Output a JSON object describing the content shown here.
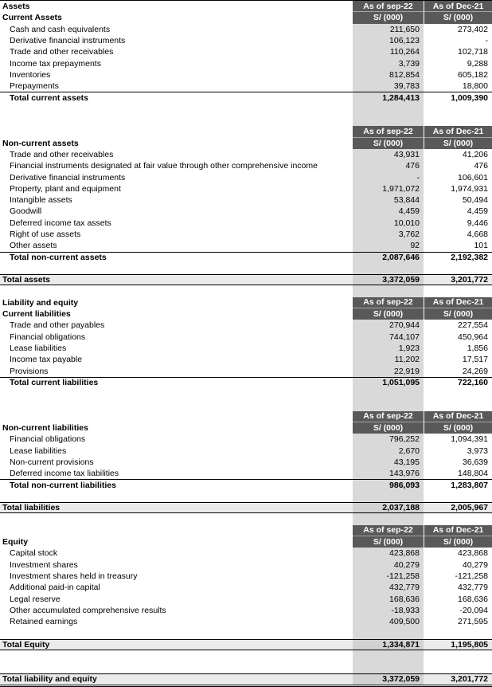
{
  "columns": {
    "period1": "As of sep-22",
    "period2": "As of Dec-21",
    "unit": "S/ (000)"
  },
  "colors": {
    "header_bg": "#595959",
    "header_text": "#FFFFFF",
    "period1_column_bg": "#D9D9D9",
    "grand_total_row_bg": "#EBEBEB",
    "border": "#000000"
  },
  "rows": [
    {
      "t": "colhead",
      "label": "Assets"
    },
    {
      "t": "subhead",
      "label": "Current Assets"
    },
    {
      "t": "item",
      "label": "Cash and cash equivalents",
      "v1": "211,650",
      "v2": "273,402"
    },
    {
      "t": "item",
      "label": "Derivative financial instruments",
      "v1": "106,123",
      "v2": "-"
    },
    {
      "t": "item",
      "label": "Trade and other receivables",
      "v1": "110,264",
      "v2": "102,718"
    },
    {
      "t": "item",
      "label": "Income tax prepayments",
      "v1": "3,739",
      "v2": "9,288"
    },
    {
      "t": "item",
      "label": "Inventories",
      "v1": "812,854",
      "v2": "605,182"
    },
    {
      "t": "item",
      "label": "Prepayments",
      "v1": "39,783",
      "v2": "18,800"
    },
    {
      "t": "total",
      "label": "Total current assets",
      "v1": "1,284,413",
      "v2": "1,009,390"
    },
    {
      "t": "gap",
      "n": 2
    },
    {
      "t": "colhead",
      "label": ""
    },
    {
      "t": "subhead",
      "label": "Non-current assets"
    },
    {
      "t": "item",
      "label": "Trade and other receivables",
      "v1": "43,931",
      "v2": "41,206"
    },
    {
      "t": "item",
      "label": "Financial instruments designated at fair value through other comprehensive income",
      "v1": "476",
      "v2": "476"
    },
    {
      "t": "item",
      "label": "Derivative financial instruments",
      "v1": "-",
      "v2": "106,601"
    },
    {
      "t": "item",
      "label": "Property, plant and equipment",
      "v1": "1,971,072",
      "v2": "1,974,931"
    },
    {
      "t": "item",
      "label": "Intangible assets",
      "v1": "53,844",
      "v2": "50,494"
    },
    {
      "t": "item",
      "label": "Goodwill",
      "v1": "4,459",
      "v2": "4,459"
    },
    {
      "t": "item",
      "label": "Deferred income tax assets",
      "v1": "10,010",
      "v2": "9,446"
    },
    {
      "t": "item",
      "label": "Right of use assets",
      "v1": "3,762",
      "v2": "4,668"
    },
    {
      "t": "item",
      "label": "Other assets",
      "v1": "92",
      "v2": "101"
    },
    {
      "t": "total",
      "label": "Total non-current assets",
      "v1": "2,087,646",
      "v2": "2,192,382"
    },
    {
      "t": "gap",
      "n": 1
    },
    {
      "t": "grand",
      "label": "Total assets",
      "v1": "3,372,059",
      "v2": "3,201,772"
    },
    {
      "t": "gap",
      "n": 1
    },
    {
      "t": "colhead",
      "label": "Liability and equity"
    },
    {
      "t": "subhead",
      "label": "Current liabilities"
    },
    {
      "t": "item",
      "label": "Trade and other payables",
      "v1": "270,944",
      "v2": "227,554"
    },
    {
      "t": "item",
      "label": "Financial obligations",
      "v1": "744,107",
      "v2": "450,964"
    },
    {
      "t": "item",
      "label": "Lease liabilities",
      "v1": "1,923",
      "v2": "1,856"
    },
    {
      "t": "item",
      "label": "Income tax payable",
      "v1": "11,202",
      "v2": "17,517"
    },
    {
      "t": "item",
      "label": "Provisions",
      "v1": "22,919",
      "v2": "24,269"
    },
    {
      "t": "total",
      "label": "Total current liabilities",
      "v1": "1,051,095",
      "v2": "722,160"
    },
    {
      "t": "gap",
      "n": 2
    },
    {
      "t": "colhead",
      "label": ""
    },
    {
      "t": "subhead",
      "label": "Non-current liabilities"
    },
    {
      "t": "item",
      "label": "Financial obligations",
      "v1": "796,252",
      "v2": "1,094,391"
    },
    {
      "t": "item",
      "label": "Lease liabilities",
      "v1": "2,670",
      "v2": "3,973"
    },
    {
      "t": "item",
      "label": "Non-current provisions",
      "v1": "43,195",
      "v2": "36,639"
    },
    {
      "t": "item",
      "label": "Deferred income tax liabilities",
      "v1": "143,976",
      "v2": "148,804"
    },
    {
      "t": "total",
      "label": "Total non-current liabilities",
      "v1": "986,093",
      "v2": "1,283,807"
    },
    {
      "t": "gap",
      "n": 1
    },
    {
      "t": "grand",
      "label": "Total liabilities",
      "v1": "2,037,188",
      "v2": "2,005,967"
    },
    {
      "t": "gap",
      "n": 1
    },
    {
      "t": "colhead",
      "label": ""
    },
    {
      "t": "subhead",
      "label": "Equity"
    },
    {
      "t": "item",
      "label": "Capital stock",
      "v1": "423,868",
      "v2": "423,868"
    },
    {
      "t": "item",
      "label": "Investment shares",
      "v1": "40,279",
      "v2": "40,279"
    },
    {
      "t": "item",
      "label": "Investment shares held in treasury",
      "v1": "-121,258",
      "v2": "-121,258"
    },
    {
      "t": "item",
      "label": "Additional paid-in capital",
      "v1": "432,779",
      "v2": "432,779"
    },
    {
      "t": "item",
      "label": "Legal reserve",
      "v1": "168,636",
      "v2": "168,636"
    },
    {
      "t": "item",
      "label": "Other accumulated comprehensive results",
      "v1": "-18,933",
      "v2": "-20,094"
    },
    {
      "t": "item",
      "label": "Retained earnings",
      "v1": "409,500",
      "v2": "271,595"
    },
    {
      "t": "gap",
      "n": 1
    },
    {
      "t": "grand",
      "label": "Total Equity",
      "v1": "1,334,871",
      "v2": "1,195,805"
    },
    {
      "t": "gap",
      "n": 2
    },
    {
      "t": "grand2",
      "label": "Total liability and equity",
      "v1": "3,372,059",
      "v2": "3,201,772"
    }
  ]
}
